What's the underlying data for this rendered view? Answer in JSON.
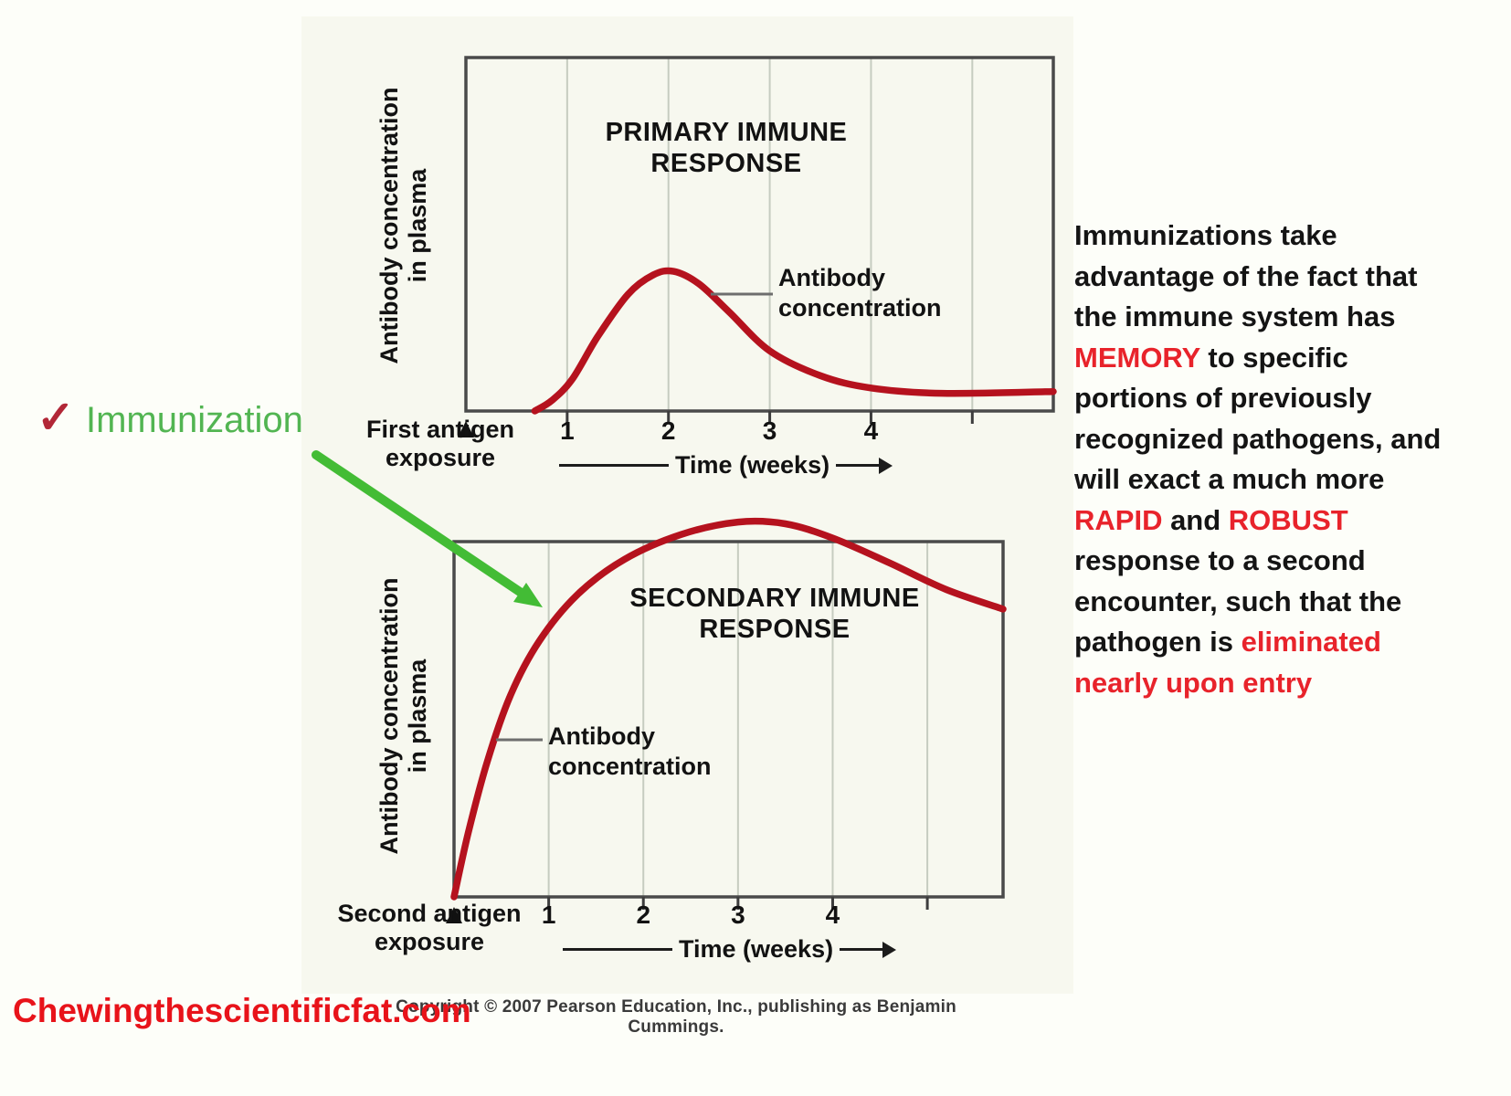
{
  "chart_data": [
    {
      "type": "line",
      "title": "PRIMARY IMMUNE RESPONSE",
      "xlabel": "Time (weeks)",
      "ylabel": "Antibody concentration in plasma",
      "ylabel_lines": [
        "Antibody concentration",
        "in plasma"
      ],
      "series_label": "Antibody concentration",
      "event_label": "First antigen exposure",
      "event_label_lines": [
        "First antigen",
        "exposure"
      ],
      "event_week": 0,
      "x_ticks": [
        1,
        2,
        3,
        4
      ],
      "gridline_weeks": [
        1,
        2,
        3,
        4,
        5
      ],
      "xlim": [
        0,
        5.8
      ],
      "ylim": [
        0,
        100
      ],
      "y_units": "relative antibody concentration (axis unlabeled in figure)",
      "x": [
        0.68,
        0.85,
        1.05,
        1.3,
        1.6,
        1.85,
        2.05,
        2.3,
        2.6,
        3.0,
        3.5,
        4.0,
        4.7,
        5.8
      ],
      "y": [
        0,
        3,
        9,
        21,
        33,
        38.5,
        39.5,
        36,
        28,
        17,
        10,
        6.5,
        5,
        5.5
      ],
      "peak": {
        "week": 2.05,
        "value": 39.5
      }
    },
    {
      "type": "line",
      "title": "SECONDARY IMMUNE RESPONSE",
      "xlabel": "Time (weeks)",
      "ylabel": "Antibody concentration in plasma",
      "ylabel_lines": [
        "Antibody concentration",
        "in plasma"
      ],
      "series_label": "Antibody concentration",
      "event_label": "Second antigen exposure",
      "event_label_lines": [
        "Second antigen",
        "exposure"
      ],
      "event_week": 0,
      "x_ticks": [
        1,
        2,
        3,
        4
      ],
      "gridline_weeks": [
        1,
        2,
        3,
        4,
        5
      ],
      "xlim": [
        0,
        5.8
      ],
      "ylim": [
        0,
        100
      ],
      "y_units": "relative antibody concentration (axis unlabeled in figure); curve crests above plot frame",
      "x": [
        0,
        0.15,
        0.35,
        0.6,
        0.9,
        1.3,
        1.8,
        2.4,
        3.0,
        3.5,
        4.0,
        4.6,
        5.2,
        5.8
      ],
      "y": [
        0,
        18,
        38,
        57,
        72,
        85,
        95,
        102,
        105.5,
        105,
        101,
        94,
        86.5,
        81
      ],
      "peak": {
        "week": 3.2,
        "value": 105.5
      }
    }
  ],
  "annotation": {
    "checkmark": "✓",
    "label": "Immunization"
  },
  "side_text": {
    "lines": [
      [
        {
          "t": "Immunizations take"
        }
      ],
      [
        {
          "t": "advantage of the fact that"
        }
      ],
      [
        {
          "t": "the immune system has"
        }
      ],
      [
        {
          "t": "MEMORY",
          "red": true
        },
        {
          "t": " to specific"
        }
      ],
      [
        {
          "t": "portions of previously"
        }
      ],
      [
        {
          "t": "recognized pathogens, and"
        }
      ],
      [
        {
          "t": "will exact a much more"
        }
      ],
      [
        {
          "t": "RAPID",
          "red": true
        },
        {
          "t": " and "
        },
        {
          "t": "ROBUST",
          "red": true
        }
      ],
      [
        {
          "t": "response to a second"
        }
      ],
      [
        {
          "t": "encounter, such that the"
        }
      ],
      [
        {
          "t": "pathogen is "
        },
        {
          "t": "eliminated",
          "red": true
        }
      ],
      [
        {
          "t": "nearly upon entry",
          "red": true
        }
      ]
    ]
  },
  "footer": {
    "copyright": "Copyright © 2007 Pearson Education, Inc., publishing as Benjamin Cummings.",
    "website": "Chewingthescientificfat.com"
  },
  "colors": {
    "curve_red": "#b5121e",
    "emphasis_red": "#e8232b",
    "checkmark_red": "#b22737",
    "immunization_green": "#52b552",
    "arrow_green": "#43bc35",
    "website_red": "#e8131a",
    "grid_gray": "#c6ccc0",
    "frame_gray": "#4a4a4a",
    "figure_bg": "#f7f8ef"
  }
}
